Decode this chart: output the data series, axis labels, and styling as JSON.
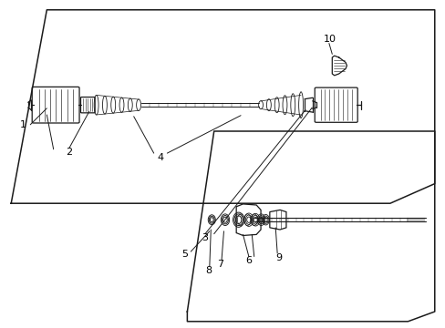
{
  "bg_color": "#ffffff",
  "line_color": "#1a1a1a",
  "fig_width": 4.89,
  "fig_height": 3.6,
  "dpi": 100,
  "lower_panel": {
    "x": [
      0.025,
      0.105,
      0.975,
      0.975,
      0.875,
      0.025,
      0.025
    ],
    "y": [
      0.38,
      0.97,
      0.97,
      0.44,
      0.38,
      0.38,
      0.38
    ]
  },
  "upper_panel": {
    "x": [
      0.42,
      0.48,
      0.975,
      0.975,
      0.915,
      0.42,
      0.42
    ],
    "y": [
      0.05,
      0.6,
      0.6,
      0.05,
      0.02,
      0.02,
      0.05
    ]
  }
}
